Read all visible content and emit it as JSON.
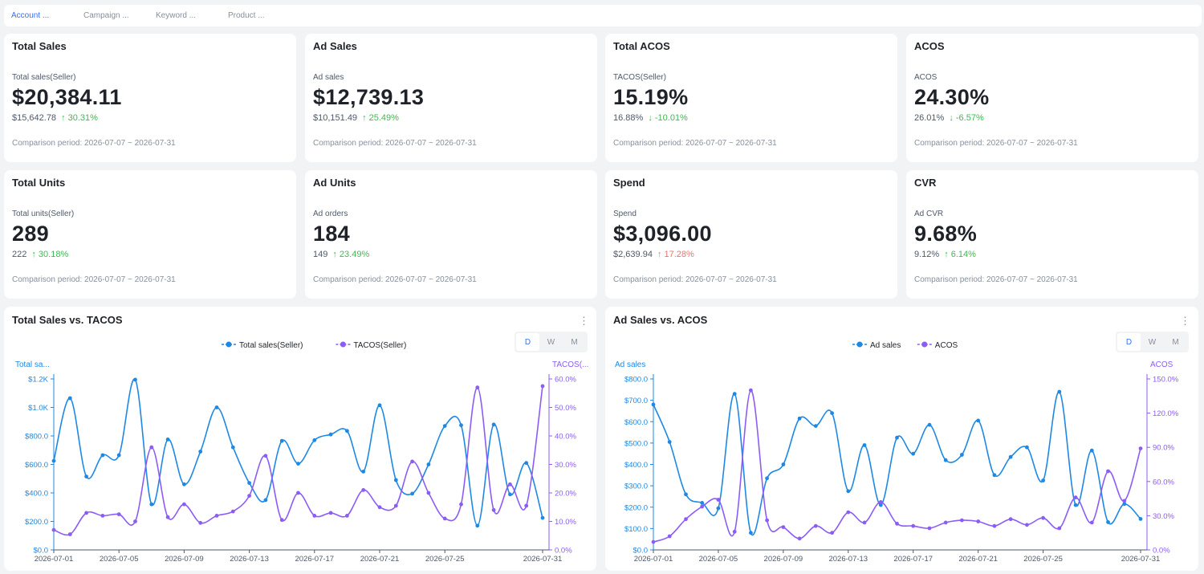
{
  "tabs": [
    "Account ...",
    "Campaign ...",
    "Keyword ...",
    "Product ..."
  ],
  "kpis": [
    {
      "title": "Total Sales",
      "label": "Total sales(Seller)",
      "value": "$20,384.11",
      "prev": "$15,642.78",
      "change": "↑ 30.31%",
      "period": "Comparison period: 2026-07-07 ~ 2026-07-31"
    },
    {
      "title": "Ad Sales",
      "label": "Ad sales",
      "value": "$12,739.13",
      "prev": "$10,151.49",
      "change": "↑ 25.49%",
      "period": "Comparison period: 2026-07-07 ~ 2026-07-31"
    },
    {
      "title": "Total ACOS",
      "label": "TACOS(Seller)",
      "value": "15.19%",
      "prev": "16.88%",
      "change": "↓ -10.01%",
      "period": "Comparison period: 2026-07-07 ~ 2026-07-31"
    },
    {
      "title": "ACOS",
      "label": "ACOS",
      "value": "24.30%",
      "prev": "26.01%",
      "change": "↓ -6.57%",
      "period": "Comparison period: 2026-07-07 ~ 2026-07-31"
    },
    {
      "title": "Total Units",
      "label": "Total units(Seller)",
      "value": "289",
      "prev": "222",
      "change": "↑ 30.18%",
      "period": "Comparison period: 2026-07-07 ~ 2026-07-31"
    },
    {
      "title": "Ad Units",
      "label": "Ad orders",
      "value": "184",
      "prev": "149",
      "change": "↑ 23.49%",
      "period": "Comparison period: 2026-07-07 ~ 2026-07-31"
    },
    {
      "title": "Spend",
      "label": "Spend",
      "value": "$3,096.00",
      "prev": "$2,639.94",
      "change": "↑ 17.28%",
      "period": "Comparison period: 2026-07-07 ~ 2026-07-31"
    },
    {
      "title": "CVR",
      "label": "Ad CVR",
      "value": "9.68%",
      "prev": "9.12%",
      "change": "↑ 6.14%",
      "period": "Comparison period: 2026-07-07 ~ 2026-07-31"
    }
  ],
  "colors": {
    "blue": "#1e88e5",
    "purple": "#8b5cf6",
    "positive": "#3fb950",
    "negative": "#f07070",
    "accent": "#3370ff"
  },
  "granularity": [
    "D",
    "W",
    "M"
  ],
  "more_icon": "⋮",
  "chart_data": [
    {
      "type": "line",
      "title": "Total Sales vs. TACOS",
      "x": [
        "2026-07-01",
        "2026-07-02",
        "2026-07-03",
        "2026-07-04",
        "2026-07-05",
        "2026-07-06",
        "2026-07-07",
        "2026-07-08",
        "2026-07-09",
        "2026-07-10",
        "2026-07-11",
        "2026-07-12",
        "2026-07-13",
        "2026-07-14",
        "2026-07-15",
        "2026-07-16",
        "2026-07-17",
        "2026-07-18",
        "2026-07-19",
        "2026-07-20",
        "2026-07-21",
        "2026-07-22",
        "2026-07-23",
        "2026-07-24",
        "2026-07-25",
        "2026-07-26",
        "2026-07-27",
        "2026-07-28",
        "2026-07-29",
        "2026-07-30",
        "2026-07-31"
      ],
      "xticks": [
        "2026-07-01",
        "2026-07-05",
        "2026-07-09",
        "2026-07-13",
        "2026-07-17",
        "2026-07-21",
        "2026-07-25",
        "2026-07-31"
      ],
      "ylabel_left": "Total sa...",
      "ylabel_right": "TACOS(...",
      "left_ticks": [
        "$0.0",
        "$200.0",
        "$400.0",
        "$600.0",
        "$800.0",
        "$1.0K",
        "$1.2K"
      ],
      "right_ticks": [
        "0.0%",
        "10.0%",
        "20.0%",
        "30.0%",
        "40.0%",
        "50.0%",
        "60.0%"
      ],
      "ylim_left": [
        0,
        1200
      ],
      "ylim_right": [
        0,
        60
      ],
      "series": [
        {
          "name": "Total sales(Seller)",
          "axis": "left",
          "values": [
            625,
            1065,
            515,
            665,
            665,
            1195,
            320,
            775,
            460,
            690,
            1000,
            720,
            470,
            350,
            765,
            605,
            770,
            810,
            835,
            550,
            1015,
            490,
            395,
            600,
            870,
            875,
            170,
            880,
            390,
            610,
            225
          ]
        },
        {
          "name": "TACOS(Seller)",
          "axis": "right",
          "values": [
            7,
            5.5,
            13,
            12,
            12.5,
            10,
            36,
            11.5,
            16,
            9.5,
            12,
            13.5,
            19,
            33,
            10.5,
            20,
            12,
            13,
            12,
            21,
            15,
            15.5,
            31,
            20,
            11,
            16,
            57,
            14,
            23,
            15.5,
            57.5
          ]
        }
      ]
    },
    {
      "type": "line",
      "title": "Ad Sales vs. ACOS",
      "x": [
        "2026-07-01",
        "2026-07-02",
        "2026-07-03",
        "2026-07-04",
        "2026-07-05",
        "2026-07-06",
        "2026-07-07",
        "2026-07-08",
        "2026-07-09",
        "2026-07-10",
        "2026-07-11",
        "2026-07-12",
        "2026-07-13",
        "2026-07-14",
        "2026-07-15",
        "2026-07-16",
        "2026-07-17",
        "2026-07-18",
        "2026-07-19",
        "2026-07-20",
        "2026-07-21",
        "2026-07-22",
        "2026-07-23",
        "2026-07-24",
        "2026-07-25",
        "2026-07-26",
        "2026-07-27",
        "2026-07-28",
        "2026-07-29",
        "2026-07-30",
        "2026-07-31"
      ],
      "xticks": [
        "2026-07-01",
        "2026-07-05",
        "2026-07-09",
        "2026-07-13",
        "2026-07-17",
        "2026-07-21",
        "2026-07-25",
        "2026-07-31"
      ],
      "ylabel_left": "Ad sales",
      "ylabel_right": "ACOS",
      "left_ticks": [
        "$0.0",
        "$100.0",
        "$200.0",
        "$300.0",
        "$400.0",
        "$500.0",
        "$600.0",
        "$700.0",
        "$800.0"
      ],
      "right_ticks": [
        "0.0%",
        "30.0%",
        "60.0%",
        "90.0%",
        "120.0%",
        "150.0%"
      ],
      "ylim_left": [
        0,
        800
      ],
      "ylim_right": [
        0,
        150
      ],
      "series": [
        {
          "name": "Ad sales",
          "axis": "left",
          "values": [
            680,
            505,
            260,
            220,
            195,
            730,
            80,
            335,
            400,
            615,
            580,
            640,
            275,
            490,
            210,
            525,
            450,
            585,
            420,
            445,
            605,
            350,
            435,
            480,
            325,
            740,
            210,
            465,
            130,
            215,
            145
          ]
        },
        {
          "name": "ACOS",
          "axis": "right",
          "values": [
            7,
            12,
            27,
            38,
            44,
            16,
            140,
            26,
            20,
            10,
            21,
            15,
            33,
            24,
            42,
            23,
            21,
            19,
            24,
            26,
            25,
            21,
            27,
            22,
            28,
            19,
            46,
            24,
            69,
            43,
            89
          ]
        }
      ]
    }
  ]
}
